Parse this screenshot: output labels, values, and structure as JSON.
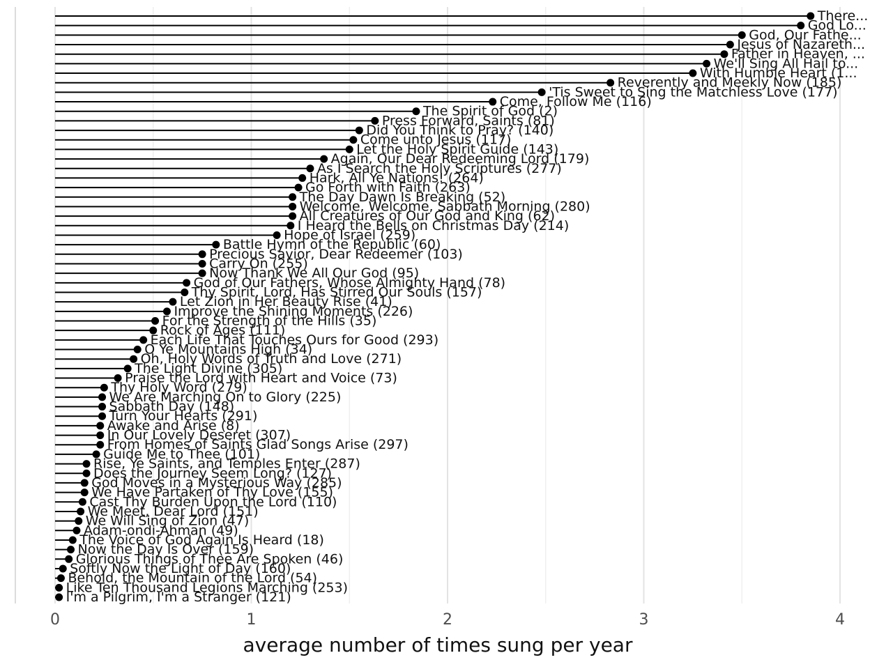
{
  "chart_data": {
    "type": "lollipop",
    "title": "",
    "xlabel": "average number of times sung per year",
    "ylabel": "",
    "xlim": [
      0,
      4
    ],
    "xticks": [
      0,
      1,
      2,
      3,
      4
    ],
    "tick_labels": [
      "0",
      "1",
      "2",
      "3",
      "4"
    ],
    "grid": true,
    "categories": [
      "There...",
      "God Lo...",
      "God, Our Fathe...",
      "Jesus of Nazareth...",
      "Father in Heaven, ...",
      "We'll Sing All Hail to...",
      "With Humble Heart (1...",
      "Reverently and Meekly Now (185)",
      "'Tis Sweet to Sing the Matchless Love (177)",
      "Come, Follow Me (116)",
      "The Spirit of God (2)",
      "Press Forward, Saints (81)",
      "Did You Think to Pray? (140)",
      "Come unto Jesus (117)",
      "Let the Holy Spirit Guide (143)",
      "Again, Our Dear Redeeming Lord (179)",
      "As I Search the Holy Scriptures (277)",
      "Hark, All Ye Nations! (264)",
      "Go Forth with Faith (263)",
      "The Day Dawn Is Breaking (52)",
      "Welcome, Welcome, Sabbath Morning (280)",
      "All Creatures of Our God and King (62)",
      "I Heard the Bells on Christmas Day (214)",
      "Hope of Israel (259)",
      "Battle Hymn of the Republic (60)",
      "Precious Savior, Dear Redeemer (103)",
      "Carry On (255)",
      "Now Thank We All Our God (95)",
      "God of Our Fathers, Whose Almighty Hand (78)",
      "Thy Spirit, Lord, Has Stirred Our Souls (157)",
      "Let Zion in Her Beauty Rise (41)",
      "Improve the Shining Moments (226)",
      "For the Strength of the Hills (35)",
      "Rock of Ages (111)",
      "Each Life That Touches Ours for Good (293)",
      "O Ye Mountains High (34)",
      "Oh, Holy Words of Truth and Love (271)",
      "The Light Divine (305)",
      "Praise the Lord with Heart and Voice (73)",
      "Thy Holy Word (279)",
      "We Are Marching On to Glory (225)",
      "Sabbath Day (148)",
      "Turn Your Hearts (291)",
      "Awake and Arise (8)",
      "In Our Lovely Deseret (307)",
      "From Homes of Saints Glad Songs Arise (297)",
      "Guide Me to Thee (101)",
      "Rise, Ye Saints, and Temples Enter (287)",
      "Does the Journey Seem Long? (127)",
      "God Moves in a Mysterious Way (285)",
      "We Have Partaken of Thy Love (155)",
      "Cast Thy Burden Upon the Lord (110)",
      "We Meet, Dear Lord (151)",
      "We Will Sing of Zion (47)",
      "Adam-ondi-Ahman (49)",
      "The Voice of God Again Is Heard (18)",
      "Now the Day Is Over (159)",
      "Glorious Things of Thee Are Spoken (46)",
      "Softly Now the Light of Day (160)",
      "Behold, the Mountain of the Lord (54)",
      "Like Ten Thousand Legions Marching (253)",
      "I'm a Pilgrim, I'm a Stranger (121)"
    ],
    "values": [
      3.85,
      3.8,
      3.5,
      3.44,
      3.41,
      3.32,
      3.25,
      2.83,
      2.48,
      2.23,
      1.84,
      1.63,
      1.55,
      1.52,
      1.5,
      1.37,
      1.3,
      1.26,
      1.24,
      1.21,
      1.21,
      1.21,
      1.2,
      1.13,
      0.82,
      0.75,
      0.75,
      0.75,
      0.67,
      0.66,
      0.6,
      0.57,
      0.51,
      0.5,
      0.45,
      0.42,
      0.4,
      0.37,
      0.32,
      0.25,
      0.24,
      0.24,
      0.24,
      0.23,
      0.23,
      0.23,
      0.21,
      0.16,
      0.16,
      0.15,
      0.15,
      0.14,
      0.13,
      0.12,
      0.11,
      0.09,
      0.08,
      0.07,
      0.04,
      0.03,
      0.02,
      0.02
    ]
  }
}
